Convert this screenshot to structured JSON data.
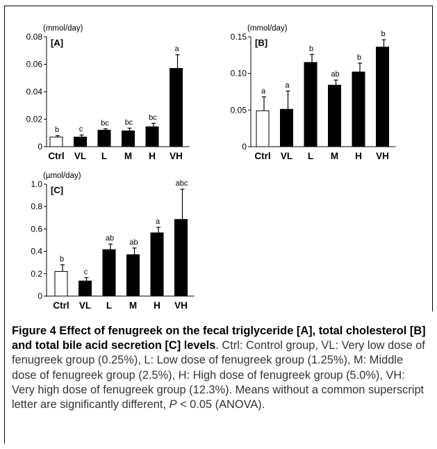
{
  "chart_data": [
    {
      "type": "bar",
      "panel_label": "[A]",
      "unit_label": "(mmol/day)",
      "categories": [
        "Ctrl",
        "VL",
        "L",
        "M",
        "H",
        "VH"
      ],
      "values": [
        0.007,
        0.007,
        0.012,
        0.0115,
        0.0145,
        0.057
      ],
      "errors": [
        0.001,
        0.0015,
        0.001,
        0.002,
        0.0025,
        0.01
      ],
      "letters": [
        "b",
        "c",
        "bc",
        "bc",
        "bc",
        "a"
      ],
      "bar_fill": [
        "#ffffff",
        "#000000",
        "#000000",
        "#000000",
        "#000000",
        "#000000"
      ],
      "ylim": [
        0,
        0.08
      ],
      "yticks": [
        0,
        0.02,
        0.04,
        0.06,
        0.08
      ],
      "ytick_labels": [
        "0",
        "0.02",
        "0.04",
        "0.06",
        "0.08"
      ]
    },
    {
      "type": "bar",
      "panel_label": "[B]",
      "unit_label": "(mmol/day)",
      "categories": [
        "Ctrl",
        "VL",
        "L",
        "M",
        "H",
        "VH"
      ],
      "values": [
        0.049,
        0.051,
        0.115,
        0.084,
        0.102,
        0.136
      ],
      "errors": [
        0.019,
        0.025,
        0.011,
        0.007,
        0.012,
        0.01
      ],
      "letters": [
        "a",
        "a",
        "b",
        "ab",
        "b",
        "b"
      ],
      "bar_fill": [
        "#ffffff",
        "#000000",
        "#000000",
        "#000000",
        "#000000",
        "#000000"
      ],
      "ylim": [
        0,
        0.15
      ],
      "yticks": [
        0,
        0.05,
        0.1,
        0.15
      ],
      "ytick_labels": [
        "0",
        "0.05",
        "0.10",
        "0.15"
      ]
    },
    {
      "type": "bar",
      "panel_label": "[C]",
      "unit_label": "(µmol/day)",
      "categories": [
        "Ctrl",
        "VL",
        "L",
        "M",
        "H",
        "VH"
      ],
      "values": [
        0.22,
        0.135,
        0.415,
        0.37,
        0.565,
        0.685
      ],
      "errors": [
        0.06,
        0.03,
        0.05,
        0.06,
        0.05,
        0.27
      ],
      "letters": [
        "b",
        "c",
        "ab",
        "ab",
        "a",
        "abc"
      ],
      "bar_fill": [
        "#ffffff",
        "#000000",
        "#000000",
        "#000000",
        "#000000",
        "#000000"
      ],
      "ylim": [
        0,
        1.0
      ],
      "yticks": [
        0,
        0.2,
        0.4,
        0.6,
        0.8,
        1.0
      ],
      "ytick_labels": [
        "0",
        "0.2",
        "0.4",
        "0.6",
        "0.8",
        "1.0"
      ]
    }
  ],
  "caption": {
    "figure_label": "Figure 4 Effect of fenugreek on the fecal triglyceride [A], total cholesterol [B] and total bile acid secretion [C] levels",
    "text_before_p": ". Ctrl: Control group, VL: Very low dose of fenugreek group (0.25%), L: Low dose of fenugreek group (1.25%), M: Middle dose of fenugreek group (2.5%), H: High dose of fenugreek group (5.0%), VH: Very high dose of fenugreek group (12.3%). Means without a common superscript letter are significantly different, ",
    "p_symbol": "P",
    "text_after_p": " < 0.05 (ANOVA)."
  }
}
